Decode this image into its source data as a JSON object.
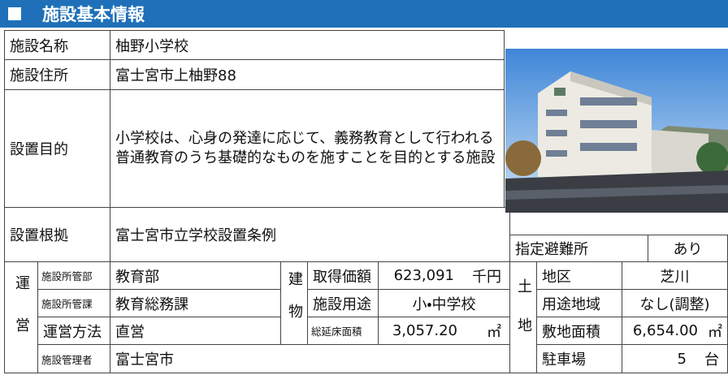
{
  "header": {
    "title": "施設基本情報"
  },
  "basic": {
    "rows": [
      [
        "施設名称",
        "柚野小学校"
      ],
      [
        "施設住所",
        "富士宮市上柚野88"
      ],
      [
        "設置目的",
        "小学校は、心身の発達に応じて、義務教育として行われる普通教育のうち基礎的なものを施すことを目的とする施設"
      ],
      [
        "設置根拠",
        "富士宮市立学校設置条例"
      ]
    ]
  },
  "evacuation": {
    "label": "指定避難所",
    "value": "あり"
  },
  "operation": {
    "heading": "運営",
    "rows": [
      [
        "施設所管部",
        "教育部"
      ],
      [
        "施設所管課",
        "教育総務課"
      ],
      [
        "運営方法",
        "直営"
      ],
      [
        "施設管理者",
        "富士宮市"
      ]
    ]
  },
  "building": {
    "heading": "建物",
    "rows": [
      {
        "label": "取得価額",
        "value": "623,091",
        "unit": "千円"
      },
      {
        "label": "施設用途",
        "value": "小・中学校"
      },
      {
        "label": "総延床面積",
        "value": "3,057.20",
        "unit": "㎡"
      }
    ]
  },
  "land": {
    "heading": "土地",
    "rows": [
      {
        "label": "地区",
        "value": "芝川"
      },
      {
        "label": "用途地域",
        "value": "なし(調整)"
      },
      {
        "label": "敷地面積",
        "value": "6,654.00",
        "unit": "㎡"
      },
      {
        "label": "駐車場",
        "value": "5",
        "unit": "台"
      }
    ]
  }
}
